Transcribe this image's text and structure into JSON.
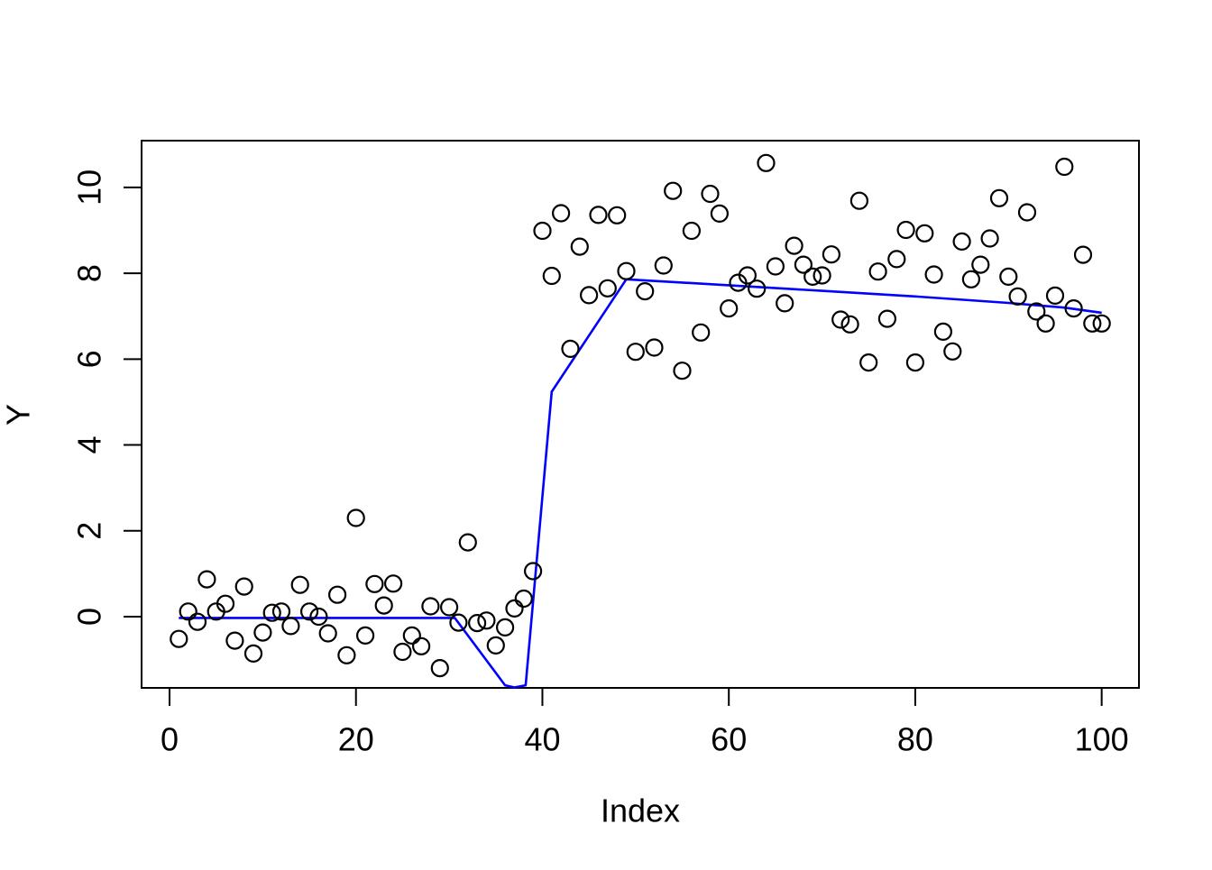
{
  "chart_data": {
    "type": "scatter",
    "title": "",
    "xlabel": "Index",
    "ylabel": "Y",
    "xlim": [
      -3,
      104
    ],
    "ylim": [
      -1.66,
      11.09
    ],
    "xticks": [
      0,
      20,
      40,
      60,
      80,
      100
    ],
    "yticks": [
      0,
      2,
      4,
      6,
      8,
      10
    ],
    "grid": false,
    "legend": "none",
    "point_style": {
      "shape": "open-circle",
      "color": "#000000",
      "radius": 9,
      "stroke_width": 2.2
    },
    "x": [
      1,
      2,
      3,
      4,
      5,
      6,
      7,
      8,
      9,
      10,
      11,
      12,
      13,
      14,
      15,
      16,
      17,
      18,
      19,
      20,
      21,
      22,
      23,
      24,
      25,
      26,
      27,
      28,
      29,
      30,
      31,
      32,
      33,
      34,
      35,
      36,
      37,
      38,
      39,
      40,
      41,
      42,
      43,
      44,
      45,
      46,
      47,
      48,
      49,
      50,
      51,
      52,
      53,
      54,
      55,
      56,
      57,
      58,
      59,
      60,
      61,
      62,
      63,
      64,
      65,
      66,
      67,
      68,
      69,
      70,
      71,
      72,
      73,
      74,
      75,
      76,
      77,
      78,
      79,
      80,
      81,
      82,
      83,
      84,
      85,
      86,
      87,
      88,
      89,
      90,
      91,
      92,
      93,
      94,
      95,
      96,
      97,
      98,
      99,
      100
    ],
    "y": [
      -0.52,
      0.12,
      -0.12,
      0.87,
      0.12,
      0.3,
      -0.56,
      0.7,
      -0.86,
      -0.37,
      0.09,
      0.12,
      -0.22,
      0.74,
      0.12,
      0.0,
      -0.39,
      0.51,
      -0.9,
      2.3,
      -0.44,
      0.76,
      0.26,
      0.77,
      -0.82,
      -0.44,
      -0.69,
      0.24,
      -1.2,
      0.22,
      -0.14,
      1.73,
      -0.15,
      -0.09,
      -0.67,
      -0.25,
      0.19,
      0.42,
      1.06,
      8.99,
      7.94,
      9.4,
      6.24,
      8.62,
      7.49,
      9.36,
      7.65,
      9.35,
      8.05,
      6.17,
      7.58,
      6.27,
      8.18,
      9.92,
      5.73,
      8.99,
      6.62,
      9.85,
      9.39,
      7.18,
      7.78,
      7.95,
      7.64,
      10.57,
      8.16,
      7.3,
      8.64,
      8.2,
      7.92,
      7.95,
      8.44,
      6.92,
      6.81,
      9.69,
      5.92,
      8.04,
      6.94,
      8.33,
      9.01,
      5.92,
      8.93,
      7.97,
      6.64,
      6.18,
      8.74,
      7.86,
      8.2,
      8.81,
      9.75,
      7.92,
      7.46,
      9.42,
      7.11,
      6.83,
      7.48,
      10.48,
      7.18,
      8.43,
      6.83,
      6.83
    ],
    "fit_line": {
      "name": "segmented-fit-line",
      "color": "#0000FF",
      "stroke_width": 2.6,
      "points": [
        [
          1,
          -0.03
        ],
        [
          30.6,
          -0.03
        ],
        [
          36.0,
          -1.6
        ],
        [
          37.0,
          -1.65
        ],
        [
          38.2,
          -1.6
        ],
        [
          41,
          5.24
        ],
        [
          49,
          7.86
        ],
        [
          60,
          7.72
        ],
        [
          70,
          7.59
        ],
        [
          80,
          7.46
        ],
        [
          90,
          7.31
        ],
        [
          96,
          7.2
        ],
        [
          100,
          7.08
        ]
      ]
    },
    "frame_color": "#000000",
    "background_color": "#FFFFFF"
  }
}
